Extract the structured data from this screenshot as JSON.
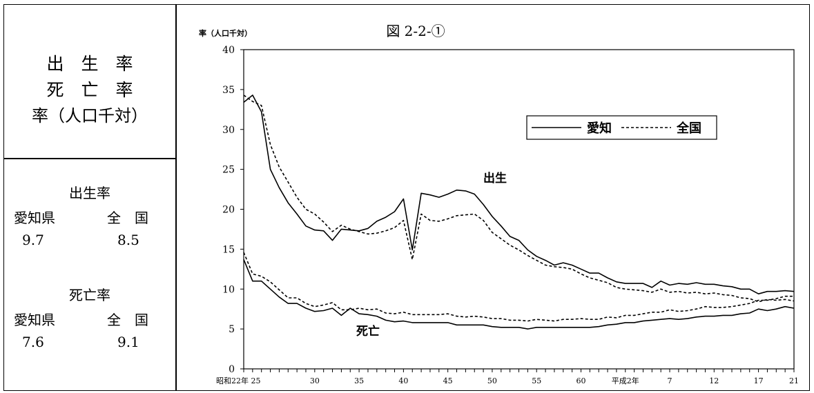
{
  "sidebar": {
    "title_lines": [
      "出　生　率",
      "死　亡　率",
      "率（人口千対）"
    ],
    "birth": {
      "heading": "出生率",
      "aichi_label": "愛知県",
      "national_label": "全　国",
      "aichi_value": "9.7",
      "national_value": "8.5"
    },
    "death": {
      "heading": "死亡率",
      "aichi_label": "愛知県",
      "national_label": "全　国",
      "aichi_value": "7.6",
      "national_value": "9.1"
    }
  },
  "chart_data": {
    "type": "line",
    "title": "図 2-2-①",
    "ylabel": "率（人口千対）",
    "ylim": [
      0,
      40
    ],
    "yticks": [
      0,
      5,
      10,
      15,
      20,
      25,
      30,
      35,
      40
    ],
    "x_tick_labels": [
      {
        "year": 1947,
        "label": "昭和22年 25"
      },
      {
        "year": 1955,
        "label": "30"
      },
      {
        "year": 1960,
        "label": "35"
      },
      {
        "year": 1965,
        "label": "40"
      },
      {
        "year": 1970,
        "label": "45"
      },
      {
        "year": 1975,
        "label": "50"
      },
      {
        "year": 1980,
        "label": "55"
      },
      {
        "year": 1985,
        "label": "60"
      },
      {
        "year": 1990,
        "label": "平成2年"
      },
      {
        "year": 1995,
        "label": "7"
      },
      {
        "year": 2000,
        "label": "12"
      },
      {
        "year": 2005,
        "label": "17"
      },
      {
        "year": 2009,
        "label": "21"
      }
    ],
    "xlim": [
      1947,
      2009
    ],
    "legend": {
      "position": "top-right",
      "aichi": "愛知",
      "national": "全国"
    },
    "annotations": {
      "birth": "出生",
      "death": "死亡"
    },
    "x": [
      1947,
      1948,
      1949,
      1950,
      1951,
      1952,
      1953,
      1954,
      1955,
      1956,
      1957,
      1958,
      1959,
      1960,
      1961,
      1962,
      1963,
      1964,
      1965,
      1966,
      1967,
      1968,
      1969,
      1970,
      1971,
      1972,
      1973,
      1974,
      1975,
      1976,
      1977,
      1978,
      1979,
      1980,
      1981,
      1982,
      1983,
      1984,
      1985,
      1986,
      1987,
      1988,
      1989,
      1990,
      1991,
      1992,
      1993,
      1994,
      1995,
      1996,
      1997,
      1998,
      1999,
      2000,
      2001,
      2002,
      2003,
      2004,
      2005,
      2006,
      2007,
      2008,
      2009
    ],
    "series": [
      {
        "name": "愛知",
        "metric": "出生",
        "style": "solid",
        "values": [
          33.4,
          34.3,
          32.2,
          25.0,
          22.7,
          20.8,
          19.4,
          17.9,
          17.4,
          17.3,
          16.1,
          17.5,
          17.4,
          17.3,
          17.6,
          18.5,
          19.0,
          19.7,
          21.3,
          14.9,
          22.0,
          21.8,
          21.5,
          21.9,
          22.4,
          22.3,
          21.9,
          20.6,
          19.1,
          17.9,
          16.6,
          16.1,
          14.9,
          14.1,
          13.6,
          13.0,
          13.3,
          13.0,
          12.5,
          12.0,
          12.0,
          11.4,
          10.9,
          10.7,
          10.7,
          10.7,
          10.2,
          11.0,
          10.5,
          10.7,
          10.6,
          10.8,
          10.6,
          10.6,
          10.4,
          10.3,
          10.0,
          10.0,
          9.4,
          9.7,
          9.7,
          9.8,
          9.7
        ]
      },
      {
        "name": "全国",
        "metric": "出生",
        "style": "dashed",
        "values": [
          34.3,
          33.5,
          33.0,
          28.1,
          25.3,
          23.4,
          21.5,
          20.0,
          19.4,
          18.4,
          17.2,
          18.0,
          17.5,
          17.2,
          16.9,
          17.0,
          17.3,
          17.7,
          18.6,
          13.7,
          19.4,
          18.6,
          18.5,
          18.8,
          19.2,
          19.3,
          19.4,
          18.6,
          17.1,
          16.3,
          15.5,
          14.9,
          14.2,
          13.6,
          13.0,
          12.8,
          12.7,
          12.5,
          11.9,
          11.4,
          11.1,
          10.8,
          10.2,
          10.0,
          9.9,
          9.8,
          9.6,
          10.0,
          9.6,
          9.7,
          9.5,
          9.6,
          9.4,
          9.5,
          9.3,
          9.2,
          8.9,
          8.8,
          8.4,
          8.7,
          8.6,
          8.7,
          8.5
        ]
      },
      {
        "name": "愛知",
        "metric": "死亡",
        "style": "solid",
        "values": [
          13.7,
          11.0,
          11.0,
          10.0,
          9.0,
          8.2,
          8.2,
          7.6,
          7.2,
          7.3,
          7.6,
          6.7,
          7.6,
          6.9,
          6.8,
          6.6,
          6.1,
          5.9,
          6.0,
          5.8,
          5.8,
          5.8,
          5.8,
          5.8,
          5.5,
          5.5,
          5.5,
          5.5,
          5.3,
          5.2,
          5.2,
          5.2,
          5.0,
          5.2,
          5.2,
          5.2,
          5.2,
          5.2,
          5.2,
          5.2,
          5.3,
          5.5,
          5.6,
          5.8,
          5.8,
          6.0,
          6.1,
          6.2,
          6.3,
          6.2,
          6.3,
          6.5,
          6.6,
          6.6,
          6.7,
          6.7,
          6.9,
          7.0,
          7.5,
          7.3,
          7.5,
          7.8,
          7.6
        ]
      },
      {
        "name": "全国",
        "metric": "死亡",
        "style": "dashed",
        "values": [
          14.6,
          11.9,
          11.6,
          10.9,
          9.9,
          8.9,
          8.9,
          8.2,
          7.8,
          8.0,
          8.3,
          7.4,
          7.4,
          7.6,
          7.4,
          7.5,
          7.0,
          6.9,
          7.1,
          6.8,
          6.8,
          6.8,
          6.8,
          6.9,
          6.6,
          6.5,
          6.6,
          6.5,
          6.3,
          6.3,
          6.1,
          6.1,
          6.0,
          6.2,
          6.1,
          6.0,
          6.2,
          6.2,
          6.3,
          6.2,
          6.2,
          6.5,
          6.4,
          6.7,
          6.7,
          6.9,
          7.1,
          7.1,
          7.4,
          7.2,
          7.3,
          7.5,
          7.8,
          7.7,
          7.7,
          7.8,
          8.0,
          8.2,
          8.6,
          8.6,
          8.8,
          9.1,
          9.1
        ]
      }
    ]
  }
}
